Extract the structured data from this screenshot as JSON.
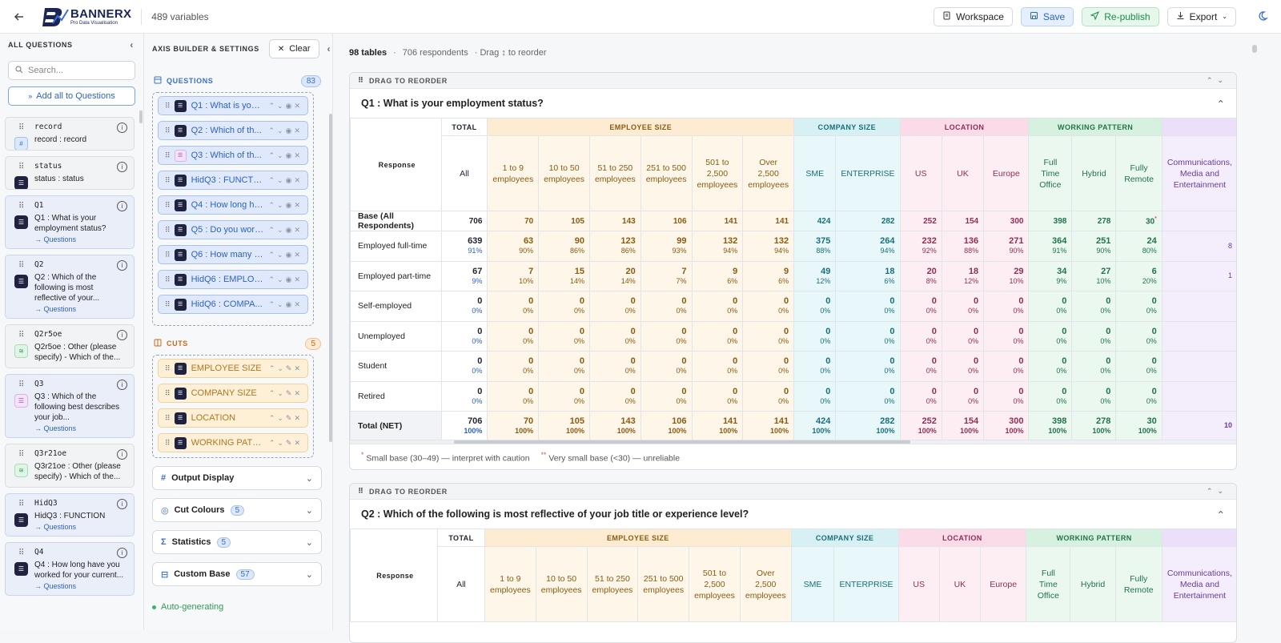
{
  "topbar": {
    "brand": "BANNERX",
    "brand_tag": "Pro Data Visualisation",
    "var_count": "489 variables",
    "workspace": "Workspace",
    "save": "Save",
    "republish": "Re-publish",
    "export": "Export"
  },
  "left": {
    "title": "ALL QUESTIONS",
    "search_placeholder": "Search...",
    "add_all": "Add all to Questions",
    "items": [
      {
        "id": "record",
        "text": "record : record",
        "link": "",
        "icon": "blue"
      },
      {
        "id": "status",
        "text": "status : status",
        "link": "",
        "icon": "dark"
      },
      {
        "id": "Q1",
        "text": "Q1 : What is your employment status?",
        "link": "→ Questions",
        "icon": "dark",
        "sel": true
      },
      {
        "id": "Q2",
        "text": "Q2 : Which of the following is most reflective of your...",
        "link": "→ Questions",
        "icon": "dark",
        "sel": true
      },
      {
        "id": "Q2r5oe",
        "text": "Q2r5oe : Other (please specify) - Which of the...",
        "link": "",
        "icon": "green"
      },
      {
        "id": "Q3",
        "text": "Q3 : Which of the following best describes your job...",
        "link": "→ Questions",
        "icon": "purple",
        "sel": true
      },
      {
        "id": "Q3r21oe",
        "text": "Q3r21oe : Other (please specify) - Which of the...",
        "link": "",
        "icon": "green"
      },
      {
        "id": "HidQ3",
        "text": "HidQ3 : FUNCTION",
        "link": "→ Questions",
        "icon": "dark",
        "sel": true
      },
      {
        "id": "Q4",
        "text": "Q4 : How long have you worked for your current...",
        "link": "→ Questions",
        "icon": "dark",
        "sel": true
      }
    ]
  },
  "middle": {
    "title": "AXIS BUILDER & SETTINGS",
    "clear": "Clear",
    "questions_label": "QUESTIONS",
    "questions_count": "83",
    "questions": [
      {
        "label": "Q1 : What is your ...",
        "icon": "dark"
      },
      {
        "label": "Q2 : Which of th...",
        "icon": "dark"
      },
      {
        "label": "Q3 : Which of th...",
        "icon": "purple"
      },
      {
        "label": "HidQ3 : FUNCTION",
        "icon": "dark"
      },
      {
        "label": "Q4 : How long ha...",
        "icon": "dark"
      },
      {
        "label": "Q5 : Do you work...",
        "icon": "dark"
      },
      {
        "label": "Q6 : How many e...",
        "icon": "dark"
      },
      {
        "label": "HidQ6 : EMPLOY...",
        "icon": "dark"
      },
      {
        "label": "HidQ6 : COMPA...",
        "icon": "dark"
      }
    ],
    "cuts_label": "CUTS",
    "cuts_count": "5",
    "cuts": [
      "EMPLOYEE SIZE",
      "COMPANY SIZE",
      "LOCATION",
      "WORKING PATTE..."
    ],
    "accordions": [
      {
        "label": "Output Display",
        "count": "",
        "icon": "#"
      },
      {
        "label": "Cut Colours",
        "count": "5",
        "icon": "◎"
      },
      {
        "label": "Statistics",
        "count": "5",
        "icon": "Σ"
      },
      {
        "label": "Custom Base",
        "count": "57",
        "icon": "⊟"
      }
    ],
    "status": "Auto-generating"
  },
  "main": {
    "tables_count": "98 tables",
    "respondents": "706 respondents",
    "drag_hint": "· Drag ↕ to reorder",
    "drag_label": "DRAG TO REORDER",
    "footnote_small": "Small base (30–49) — interpret with caution",
    "footnote_vsmall": "Very small base (<30) — unreliable",
    "groups": [
      {
        "label": "TOTAL",
        "cls": "tot",
        "span": 1
      },
      {
        "label": "EMPLOYEE SIZE",
        "cls": "es",
        "span": 6
      },
      {
        "label": "COMPANY SIZE",
        "cls": "cs",
        "span": 2
      },
      {
        "label": "LOCATION",
        "cls": "lo",
        "span": 3
      },
      {
        "label": "WORKING PATTERN",
        "cls": "wp",
        "span": 3
      },
      {
        "label": "",
        "cls": "cm",
        "span": 1
      }
    ],
    "columns": [
      {
        "label": "All",
        "cls": "tot"
      },
      {
        "label": "1 to 9 employees",
        "cls": "es"
      },
      {
        "label": "10 to 50 employees",
        "cls": "es"
      },
      {
        "label": "51 to 250 employees",
        "cls": "es"
      },
      {
        "label": "251 to 500 employees",
        "cls": "es"
      },
      {
        "label": "501 to 2,500 employees",
        "cls": "es"
      },
      {
        "label": "Over 2,500 employees",
        "cls": "es"
      },
      {
        "label": "SME",
        "cls": "cs"
      },
      {
        "label": "ENTERPRISE",
        "cls": "cs"
      },
      {
        "label": "US",
        "cls": "lo"
      },
      {
        "label": "UK",
        "cls": "lo"
      },
      {
        "label": "Europe",
        "cls": "lo"
      },
      {
        "label": "Full Time Office",
        "cls": "wp"
      },
      {
        "label": "Hybrid",
        "cls": "wp"
      },
      {
        "label": "Fully Remote",
        "cls": "wp"
      },
      {
        "label": "Communications, Media and Entertainment",
        "cls": "cm"
      }
    ],
    "tables": [
      {
        "title": "Q1 : What is your employment status?",
        "response_label": "Response",
        "base_label": "Base (All Respondents)",
        "base": [
          "706",
          "70",
          "105",
          "143",
          "106",
          "141",
          "141",
          "424",
          "282",
          "252",
          "154",
          "300",
          "398",
          "278",
          "30",
          ""
        ],
        "rows": [
          {
            "label": "Employed full-time",
            "n": [
              "639",
              "63",
              "90",
              "123",
              "99",
              "132",
              "132",
              "375",
              "264",
              "232",
              "136",
              "271",
              "364",
              "251",
              "24",
              ""
            ],
            "p": [
              "91%",
              "90%",
              "86%",
              "86%",
              "93%",
              "94%",
              "94%",
              "88%",
              "94%",
              "92%",
              "88%",
              "90%",
              "91%",
              "90%",
              "80%",
              "8"
            ]
          },
          {
            "label": "Employed part-time",
            "n": [
              "67",
              "7",
              "15",
              "20",
              "7",
              "9",
              "9",
              "49",
              "18",
              "20",
              "18",
              "29",
              "34",
              "27",
              "6",
              ""
            ],
            "p": [
              "9%",
              "10%",
              "14%",
              "14%",
              "7%",
              "6%",
              "6%",
              "12%",
              "6%",
              "8%",
              "12%",
              "10%",
              "9%",
              "10%",
              "20%",
              "1"
            ]
          },
          {
            "label": "Self-employed",
            "n": [
              "0",
              "0",
              "0",
              "0",
              "0",
              "0",
              "0",
              "0",
              "0",
              "0",
              "0",
              "0",
              "0",
              "0",
              "0",
              ""
            ],
            "p": [
              "0%",
              "0%",
              "0%",
              "0%",
              "0%",
              "0%",
              "0%",
              "0%",
              "0%",
              "0%",
              "0%",
              "0%",
              "0%",
              "0%",
              "0%",
              ""
            ]
          },
          {
            "label": "Unemployed",
            "n": [
              "0",
              "0",
              "0",
              "0",
              "0",
              "0",
              "0",
              "0",
              "0",
              "0",
              "0",
              "0",
              "0",
              "0",
              "0",
              ""
            ],
            "p": [
              "0%",
              "0%",
              "0%",
              "0%",
              "0%",
              "0%",
              "0%",
              "0%",
              "0%",
              "0%",
              "0%",
              "0%",
              "0%",
              "0%",
              "0%",
              ""
            ]
          },
          {
            "label": "Student",
            "n": [
              "0",
              "0",
              "0",
              "0",
              "0",
              "0",
              "0",
              "0",
              "0",
              "0",
              "0",
              "0",
              "0",
              "0",
              "0",
              ""
            ],
            "p": [
              "0%",
              "0%",
              "0%",
              "0%",
              "0%",
              "0%",
              "0%",
              "0%",
              "0%",
              "0%",
              "0%",
              "0%",
              "0%",
              "0%",
              "0%",
              ""
            ]
          },
          {
            "label": "Retired",
            "n": [
              "0",
              "0",
              "0",
              "0",
              "0",
              "0",
              "0",
              "0",
              "0",
              "0",
              "0",
              "0",
              "0",
              "0",
              "0",
              ""
            ],
            "p": [
              "0%",
              "0%",
              "0%",
              "0%",
              "0%",
              "0%",
              "0%",
              "0%",
              "0%",
              "0%",
              "0%",
              "0%",
              "0%",
              "0%",
              "0%",
              ""
            ]
          }
        ],
        "net": {
          "label": "Total (NET)",
          "n": [
            "706",
            "70",
            "105",
            "143",
            "106",
            "141",
            "141",
            "424",
            "282",
            "252",
            "154",
            "300",
            "398",
            "278",
            "30",
            ""
          ],
          "p": [
            "100%",
            "100%",
            "100%",
            "100%",
            "100%",
            "100%",
            "100%",
            "100%",
            "100%",
            "100%",
            "100%",
            "100%",
            "100%",
            "100%",
            "100%",
            "10"
          ]
        }
      },
      {
        "title": "Q2 : Which of the following is most reflective of your job title or experience level?",
        "response_label": "Response"
      }
    ]
  }
}
